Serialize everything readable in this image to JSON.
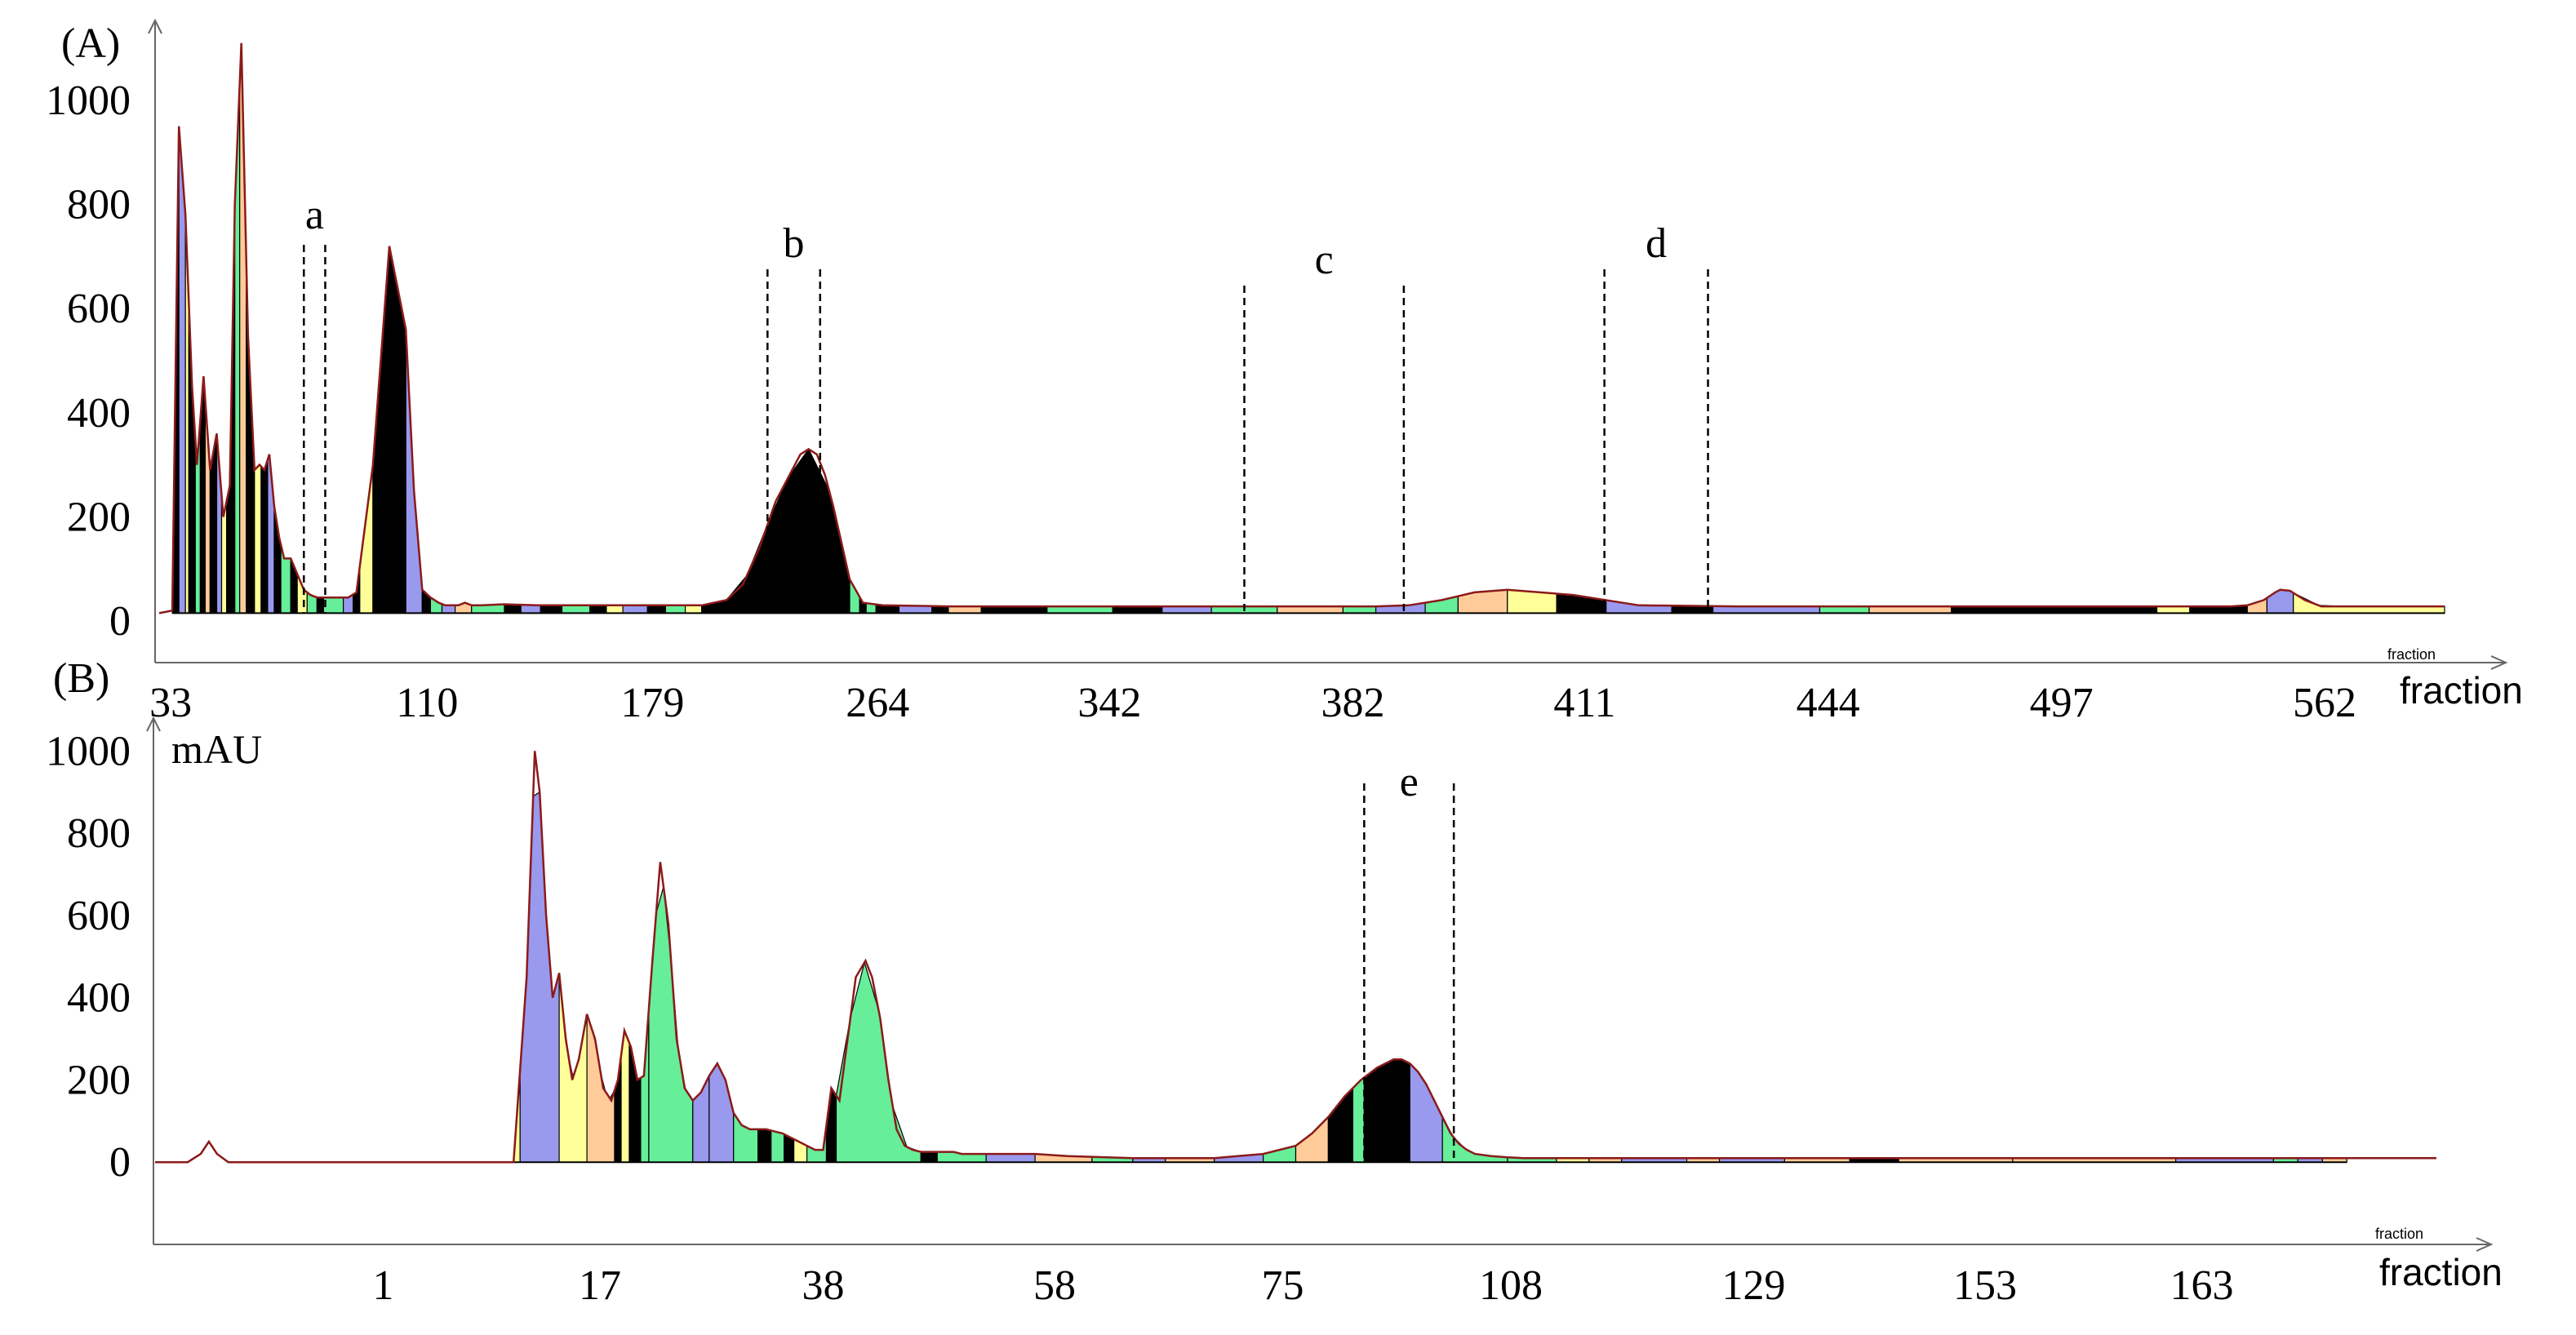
{
  "palette": [
    "#000000",
    "#9999ee",
    "#66ee99",
    "#ffff99",
    "#ffcc99"
  ],
  "chart_data": [
    {
      "type": "area",
      "panel_label": "(A)",
      "xlabel": "fraction",
      "xlabel_small": "fraction",
      "ylabel": "",
      "xlim": [
        0,
        1390
      ],
      "ylim": [
        -80,
        1130
      ],
      "yticks": [
        0,
        200,
        400,
        600,
        800,
        1000
      ],
      "xtick_labels": [
        {
          "label": "33",
          "x": 7
        },
        {
          "label": "110",
          "x": 163
        },
        {
          "label": "179",
          "x": 300
        },
        {
          "label": "264",
          "x": 437
        },
        {
          "label": "342",
          "x": 578
        },
        {
          "label": "382",
          "x": 726
        },
        {
          "label": "411",
          "x": 867
        },
        {
          "label": "444",
          "x": 1015
        },
        {
          "label": "497",
          "x": 1157
        },
        {
          "label": "562",
          "x": 1317
        }
      ],
      "baseline": 15,
      "x": [
        0,
        8,
        12,
        16,
        20,
        23,
        27,
        31,
        35,
        39,
        43,
        46,
        50,
        54,
        58,
        61,
        64,
        67,
        70,
        73,
        76,
        80,
        84,
        88,
        92,
        96,
        100,
        103,
        106,
        110,
        115,
        120,
        130,
        140,
        150,
        155,
        160,
        165,
        170,
        174,
        178,
        182,
        186,
        190,
        196,
        210,
        230,
        260,
        300,
        330,
        345,
        355,
        365,
        375,
        385,
        390,
        395,
        400,
        405,
        410,
        415,
        420,
        428,
        440,
        480,
        560,
        620,
        680,
        700,
        720,
        740,
        760,
        780,
        800,
        820,
        860,
        900,
        960,
        1000,
        1040,
        1080,
        1100,
        1120,
        1150,
        1190,
        1230,
        1260,
        1270,
        1280,
        1287,
        1290,
        1296,
        1305,
        1315,
        1340,
        1380,
        1390
      ],
      "y": [
        15,
        20,
        950,
        780,
        450,
        300,
        470,
        290,
        360,
        200,
        260,
        800,
        1110,
        550,
        290,
        300,
        290,
        320,
        220,
        160,
        120,
        120,
        90,
        60,
        50,
        45,
        45,
        45,
        45,
        45,
        45,
        55,
        300,
        720,
        560,
        250,
        60,
        45,
        35,
        30,
        30,
        30,
        35,
        30,
        30,
        32,
        30,
        30,
        30,
        30,
        40,
        70,
        140,
        230,
        290,
        320,
        330,
        320,
        280,
        220,
        150,
        80,
        35,
        30,
        28,
        28,
        28,
        28,
        28,
        28,
        28,
        30,
        40,
        55,
        60,
        50,
        30,
        28,
        28,
        28,
        28,
        28,
        28,
        28,
        28,
        28,
        28,
        30,
        40,
        55,
        60,
        58,
        40,
        28,
        28,
        28,
        28
      ],
      "fractions": [
        {
          "x0": 8,
          "x1": 12,
          "color": 0
        },
        {
          "x0": 12,
          "x1": 16,
          "color": 1
        },
        {
          "x0": 16,
          "x1": 18,
          "color": 3
        },
        {
          "x0": 18,
          "x1": 22,
          "color": 0
        },
        {
          "x0": 22,
          "x1": 25,
          "color": 2
        },
        {
          "x0": 25,
          "x1": 28,
          "color": 0
        },
        {
          "x0": 28,
          "x1": 31,
          "color": 4
        },
        {
          "x0": 31,
          "x1": 35,
          "color": 0
        },
        {
          "x0": 35,
          "x1": 38,
          "color": 1
        },
        {
          "x0": 38,
          "x1": 41,
          "color": 3
        },
        {
          "x0": 41,
          "x1": 46,
          "color": 0
        },
        {
          "x0": 46,
          "x1": 49,
          "color": 2
        },
        {
          "x0": 49,
          "x1": 53,
          "color": 4
        },
        {
          "x0": 53,
          "x1": 58,
          "color": 0
        },
        {
          "x0": 58,
          "x1": 62,
          "color": 3
        },
        {
          "x0": 62,
          "x1": 66,
          "color": 0
        },
        {
          "x0": 66,
          "x1": 70,
          "color": 1
        },
        {
          "x0": 70,
          "x1": 74,
          "color": 0
        },
        {
          "x0": 74,
          "x1": 80,
          "color": 2
        },
        {
          "x0": 80,
          "x1": 84,
          "color": 0
        },
        {
          "x0": 84,
          "x1": 90,
          "color": 3
        },
        {
          "x0": 90,
          "x1": 96,
          "color": 2
        },
        {
          "x0": 96,
          "x1": 100,
          "color": 0
        },
        {
          "x0": 100,
          "x1": 112,
          "color": 2
        },
        {
          "x0": 112,
          "x1": 118,
          "color": 1
        },
        {
          "x0": 118,
          "x1": 122,
          "color": 0
        },
        {
          "x0": 122,
          "x1": 130,
          "color": 3
        },
        {
          "x0": 130,
          "x1": 150,
          "color": 0
        },
        {
          "x0": 150,
          "x1": 160,
          "color": 1
        },
        {
          "x0": 160,
          "x1": 165,
          "color": 0
        },
        {
          "x0": 165,
          "x1": 172,
          "color": 2
        },
        {
          "x0": 172,
          "x1": 180,
          "color": 1
        },
        {
          "x0": 180,
          "x1": 190,
          "color": 4
        },
        {
          "x0": 190,
          "x1": 210,
          "color": 2
        },
        {
          "x0": 210,
          "x1": 220,
          "color": 0
        },
        {
          "x0": 220,
          "x1": 232,
          "color": 1
        },
        {
          "x0": 232,
          "x1": 245,
          "color": 0
        },
        {
          "x0": 245,
          "x1": 262,
          "color": 2
        },
        {
          "x0": 262,
          "x1": 272,
          "color": 0
        },
        {
          "x0": 272,
          "x1": 282,
          "color": 3
        },
        {
          "x0": 282,
          "x1": 297,
          "color": 1
        },
        {
          "x0": 297,
          "x1": 308,
          "color": 0
        },
        {
          "x0": 308,
          "x1": 320,
          "color": 2
        },
        {
          "x0": 320,
          "x1": 330,
          "color": 3
        },
        {
          "x0": 330,
          "x1": 345,
          "color": 0
        },
        {
          "x0": 345,
          "x1": 420,
          "color": 0
        },
        {
          "x0": 420,
          "x1": 426,
          "color": 2
        },
        {
          "x0": 426,
          "x1": 430,
          "color": 0
        },
        {
          "x0": 430,
          "x1": 436,
          "color": 2
        },
        {
          "x0": 436,
          "x1": 450,
          "color": 0
        },
        {
          "x0": 450,
          "x1": 470,
          "color": 1
        },
        {
          "x0": 470,
          "x1": 480,
          "color": 0
        },
        {
          "x0": 480,
          "x1": 500,
          "color": 4
        },
        {
          "x0": 500,
          "x1": 540,
          "color": 0
        },
        {
          "x0": 540,
          "x1": 580,
          "color": 2
        },
        {
          "x0": 580,
          "x1": 610,
          "color": 0
        },
        {
          "x0": 610,
          "x1": 640,
          "color": 1
        },
        {
          "x0": 640,
          "x1": 680,
          "color": 2
        },
        {
          "x0": 680,
          "x1": 720,
          "color": 4
        },
        {
          "x0": 720,
          "x1": 740,
          "color": 2
        },
        {
          "x0": 740,
          "x1": 770,
          "color": 1
        },
        {
          "x0": 770,
          "x1": 790,
          "color": 2
        },
        {
          "x0": 790,
          "x1": 820,
          "color": 4
        },
        {
          "x0": 820,
          "x1": 850,
          "color": 3
        },
        {
          "x0": 850,
          "x1": 880,
          "color": 0
        },
        {
          "x0": 880,
          "x1": 920,
          "color": 1
        },
        {
          "x0": 920,
          "x1": 945,
          "color": 0
        },
        {
          "x0": 945,
          "x1": 1010,
          "color": 1
        },
        {
          "x0": 1010,
          "x1": 1040,
          "color": 2
        },
        {
          "x0": 1040,
          "x1": 1090,
          "color": 4
        },
        {
          "x0": 1090,
          "x1": 1150,
          "color": 0
        },
        {
          "x0": 1150,
          "x1": 1215,
          "color": 0
        },
        {
          "x0": 1215,
          "x1": 1235,
          "color": 3
        },
        {
          "x0": 1235,
          "x1": 1270,
          "color": 0
        },
        {
          "x0": 1270,
          "x1": 1282,
          "color": 4
        },
        {
          "x0": 1282,
          "x1": 1298,
          "color": 1
        },
        {
          "x0": 1298,
          "x1": 1390,
          "color": 3
        }
      ],
      "regions": [
        {
          "label": "a",
          "x0": 88,
          "x1": 101
        },
        {
          "label": "b",
          "x0": 370,
          "x1": 402
        },
        {
          "label": "c",
          "x0": 660,
          "x1": 757
        },
        {
          "label": "d",
          "x0": 879,
          "x1": 942
        }
      ]
    },
    {
      "type": "area",
      "panel_label": "(B)",
      "ylabel": "mAU",
      "xlabel": "fraction",
      "xlabel_small": "fraction",
      "xlim": [
        0,
        1400
      ],
      "ylim": [
        -200,
        1080
      ],
      "yticks": [
        0,
        200,
        400,
        600,
        800,
        1000
      ],
      "xtick_labels": [
        {
          "label": "1",
          "x": 140
        },
        {
          "label": "17",
          "x": 273
        },
        {
          "label": "38",
          "x": 410
        },
        {
          "label": "58",
          "x": 552
        },
        {
          "label": "75",
          "x": 692
        },
        {
          "label": "108",
          "x": 832
        },
        {
          "label": "129",
          "x": 981
        },
        {
          "label": "153",
          "x": 1123
        },
        {
          "label": "163",
          "x": 1256
        }
      ],
      "baseline": 0,
      "x": [
        0,
        20,
        28,
        33,
        38,
        45,
        140,
        220,
        228,
        233,
        236,
        240,
        244,
        248,
        252,
        256,
        260,
        265,
        270,
        275,
        280,
        284,
        288,
        292,
        296,
        300,
        305,
        310,
        315,
        320,
        325,
        330,
        335,
        340,
        345,
        350,
        355,
        360,
        365,
        370,
        375,
        380,
        385,
        390,
        395,
        400,
        405,
        410,
        415,
        420,
        425,
        430,
        436,
        440,
        445,
        450,
        455,
        460,
        465,
        470,
        475,
        480,
        485,
        490,
        495,
        500,
        505,
        510,
        515,
        520,
        525,
        530,
        540,
        560,
        600,
        650,
        680,
        700,
        710,
        720,
        730,
        740,
        750,
        760,
        765,
        770,
        775,
        780,
        785,
        790,
        795,
        800,
        805,
        810,
        820,
        830,
        840,
        860,
        900,
        1000,
        1100,
        1200,
        1300,
        1400
      ],
      "y": [
        0,
        0,
        20,
        50,
        20,
        0,
        0,
        0,
        450,
        1000,
        900,
        600,
        400,
        460,
        300,
        200,
        250,
        360,
        300,
        180,
        150,
        200,
        320,
        280,
        200,
        210,
        480,
        730,
        580,
        300,
        180,
        150,
        170,
        210,
        240,
        200,
        120,
        90,
        80,
        80,
        80,
        75,
        70,
        60,
        50,
        40,
        30,
        30,
        180,
        150,
        300,
        450,
        490,
        450,
        350,
        200,
        80,
        40,
        30,
        25,
        25,
        25,
        25,
        25,
        20,
        20,
        20,
        20,
        20,
        20,
        20,
        20,
        20,
        15,
        10,
        10,
        20,
        40,
        70,
        110,
        160,
        200,
        230,
        250,
        250,
        240,
        220,
        190,
        150,
        110,
        70,
        45,
        30,
        20,
        15,
        12,
        10,
        10,
        10,
        10,
        10,
        10,
        10,
        10
      ],
      "fractions": [
        {
          "x0": 140,
          "x1": 142,
          "color": 0
        },
        {
          "x0": 162,
          "x1": 164,
          "color": 0
        },
        {
          "x0": 170,
          "x1": 178,
          "color": 1
        },
        {
          "x0": 178,
          "x1": 183,
          "color": 4
        },
        {
          "x0": 183,
          "x1": 186,
          "color": 2
        },
        {
          "x0": 186,
          "x1": 190,
          "color": 0
        },
        {
          "x0": 190,
          "x1": 194,
          "color": 4
        },
        {
          "x0": 194,
          "x1": 198,
          "color": 2
        },
        {
          "x0": 198,
          "x1": 202,
          "color": 1
        },
        {
          "x0": 202,
          "x1": 208,
          "color": 0
        },
        {
          "x0": 208,
          "x1": 215,
          "color": 4
        },
        {
          "x0": 215,
          "x1": 220,
          "color": 2
        },
        {
          "x0": 220,
          "x1": 224,
          "color": 3
        },
        {
          "x0": 224,
          "x1": 248,
          "color": 1
        },
        {
          "x0": 248,
          "x1": 265,
          "color": 3
        },
        {
          "x0": 265,
          "x1": 282,
          "color": 4
        },
        {
          "x0": 282,
          "x1": 286,
          "color": 0
        },
        {
          "x0": 286,
          "x1": 291,
          "color": 3
        },
        {
          "x0": 291,
          "x1": 298,
          "color": 0
        },
        {
          "x0": 298,
          "x1": 303,
          "color": 2
        },
        {
          "x0": 303,
          "x1": 330,
          "color": 2
        },
        {
          "x0": 330,
          "x1": 340,
          "color": 1
        },
        {
          "x0": 340,
          "x1": 355,
          "color": 1
        },
        {
          "x0": 355,
          "x1": 370,
          "color": 2
        },
        {
          "x0": 370,
          "x1": 378,
          "color": 0
        },
        {
          "x0": 378,
          "x1": 386,
          "color": 2
        },
        {
          "x0": 386,
          "x1": 392,
          "color": 0
        },
        {
          "x0": 392,
          "x1": 400,
          "color": 3
        },
        {
          "x0": 400,
          "x1": 412,
          "color": 2
        },
        {
          "x0": 412,
          "x1": 418,
          "color": 0
        },
        {
          "x0": 418,
          "x1": 470,
          "color": 2
        },
        {
          "x0": 470,
          "x1": 480,
          "color": 0
        },
        {
          "x0": 480,
          "x1": 510,
          "color": 2
        },
        {
          "x0": 510,
          "x1": 540,
          "color": 1
        },
        {
          "x0": 540,
          "x1": 575,
          "color": 4
        },
        {
          "x0": 575,
          "x1": 600,
          "color": 2
        },
        {
          "x0": 600,
          "x1": 620,
          "color": 1
        },
        {
          "x0": 620,
          "x1": 650,
          "color": 4
        },
        {
          "x0": 650,
          "x1": 680,
          "color": 1
        },
        {
          "x0": 680,
          "x1": 700,
          "color": 2
        },
        {
          "x0": 700,
          "x1": 720,
          "color": 4
        },
        {
          "x0": 720,
          "x1": 735,
          "color": 0
        },
        {
          "x0": 735,
          "x1": 742,
          "color": 2
        },
        {
          "x0": 742,
          "x1": 770,
          "color": 0
        },
        {
          "x0": 770,
          "x1": 790,
          "color": 1
        },
        {
          "x0": 790,
          "x1": 830,
          "color": 2
        },
        {
          "x0": 830,
          "x1": 860,
          "color": 2
        },
        {
          "x0": 860,
          "x1": 880,
          "color": 3
        },
        {
          "x0": 880,
          "x1": 900,
          "color": 4
        },
        {
          "x0": 900,
          "x1": 940,
          "color": 1
        },
        {
          "x0": 940,
          "x1": 960,
          "color": 4
        },
        {
          "x0": 960,
          "x1": 1000,
          "color": 1
        },
        {
          "x0": 1000,
          "x1": 1040,
          "color": 4
        },
        {
          "x0": 1040,
          "x1": 1070,
          "color": 0
        },
        {
          "x0": 1070,
          "x1": 1140,
          "color": 4
        },
        {
          "x0": 1140,
          "x1": 1240,
          "color": 4
        },
        {
          "x0": 1240,
          "x1": 1300,
          "color": 1
        },
        {
          "x0": 1300,
          "x1": 1315,
          "color": 2
        },
        {
          "x0": 1315,
          "x1": 1330,
          "color": 1
        },
        {
          "x0": 1330,
          "x1": 1345,
          "color": 4
        }
      ],
      "regions": [
        {
          "label": "e",
          "x0": 742,
          "x1": 797
        }
      ]
    }
  ]
}
